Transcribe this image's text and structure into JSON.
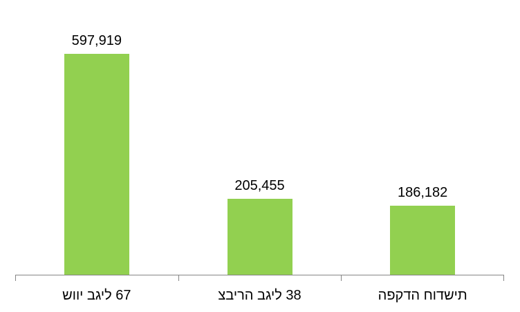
{
  "chart_data": {
    "type": "bar",
    "categories": [
      "שווי בגיל 67",
      "צבירה בגיל 38",
      "הפקדה חודשית"
    ],
    "values": [
      597919,
      205455,
      186182
    ],
    "value_labels": [
      "597,919",
      "205,455",
      "186,182"
    ],
    "title": "",
    "xlabel": "",
    "ylabel": "",
    "ylim": [
      0,
      600000
    ],
    "grid": false,
    "legend": false,
    "y_axis_visible": false,
    "bar_color": "#92D050",
    "axis_color": "#848484",
    "label_color": "#000000"
  }
}
